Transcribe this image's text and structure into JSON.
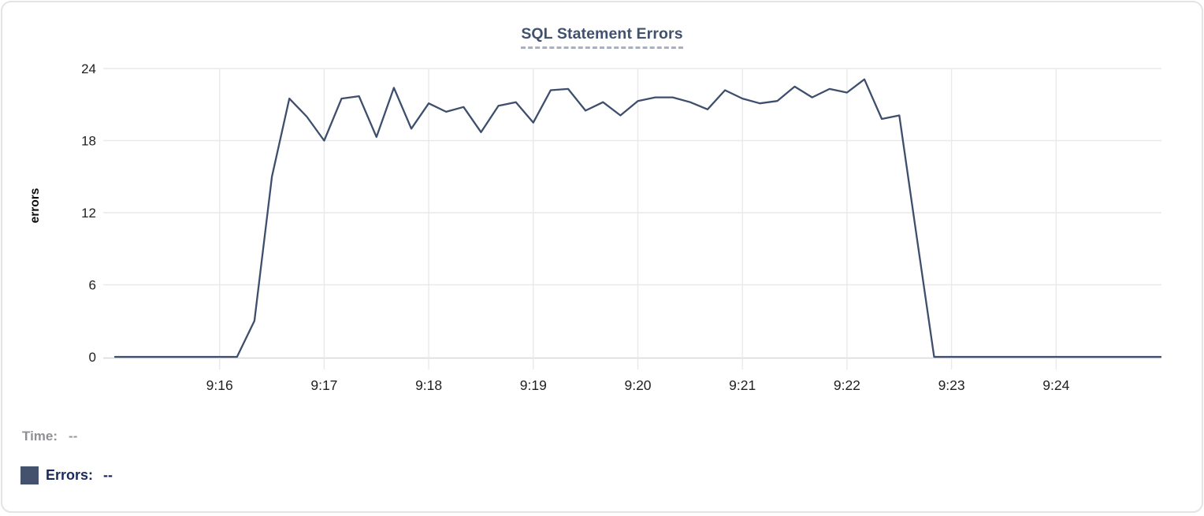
{
  "chart_data": {
    "type": "line",
    "title": "SQL Statement Errors",
    "ylabel": "errors",
    "xlabel": "",
    "ylim": [
      0,
      24
    ],
    "y_ticks": [
      0,
      6,
      12,
      18,
      24
    ],
    "x_tick_labels": [
      "9:16",
      "9:17",
      "9:18",
      "9:19",
      "9:20",
      "9:21",
      "9:22",
      "9:23",
      "9:24"
    ],
    "x_start": "9:15:00",
    "x_end": "9:25:00",
    "sample_interval_seconds": 10,
    "grid": true,
    "legend_position": "bottom-left",
    "series": [
      {
        "name": "Errors",
        "color": "#3e4e6d",
        "values": [
          0,
          0,
          0,
          0,
          0,
          0,
          0,
          0,
          3,
          15,
          21.5,
          20,
          18,
          21.5,
          21.7,
          18.3,
          22.4,
          19,
          21.1,
          20.4,
          20.8,
          18.7,
          20.9,
          21.2,
          19.5,
          22.2,
          22.3,
          20.5,
          21.2,
          20.1,
          21.3,
          21.6,
          21.6,
          21.2,
          20.6,
          22.2,
          21.5,
          21.1,
          21.3,
          22.5,
          21.6,
          22.3,
          22,
          23.1,
          19.8,
          20.1,
          10,
          0,
          0,
          0,
          0,
          0,
          0,
          0,
          0,
          0,
          0,
          0,
          0,
          0,
          0
        ]
      }
    ]
  },
  "tooltip": {
    "time_label": "Time:",
    "time_value": "--",
    "series_label": "Errors:",
    "series_value": "--",
    "swatch_color": "#44526d"
  }
}
